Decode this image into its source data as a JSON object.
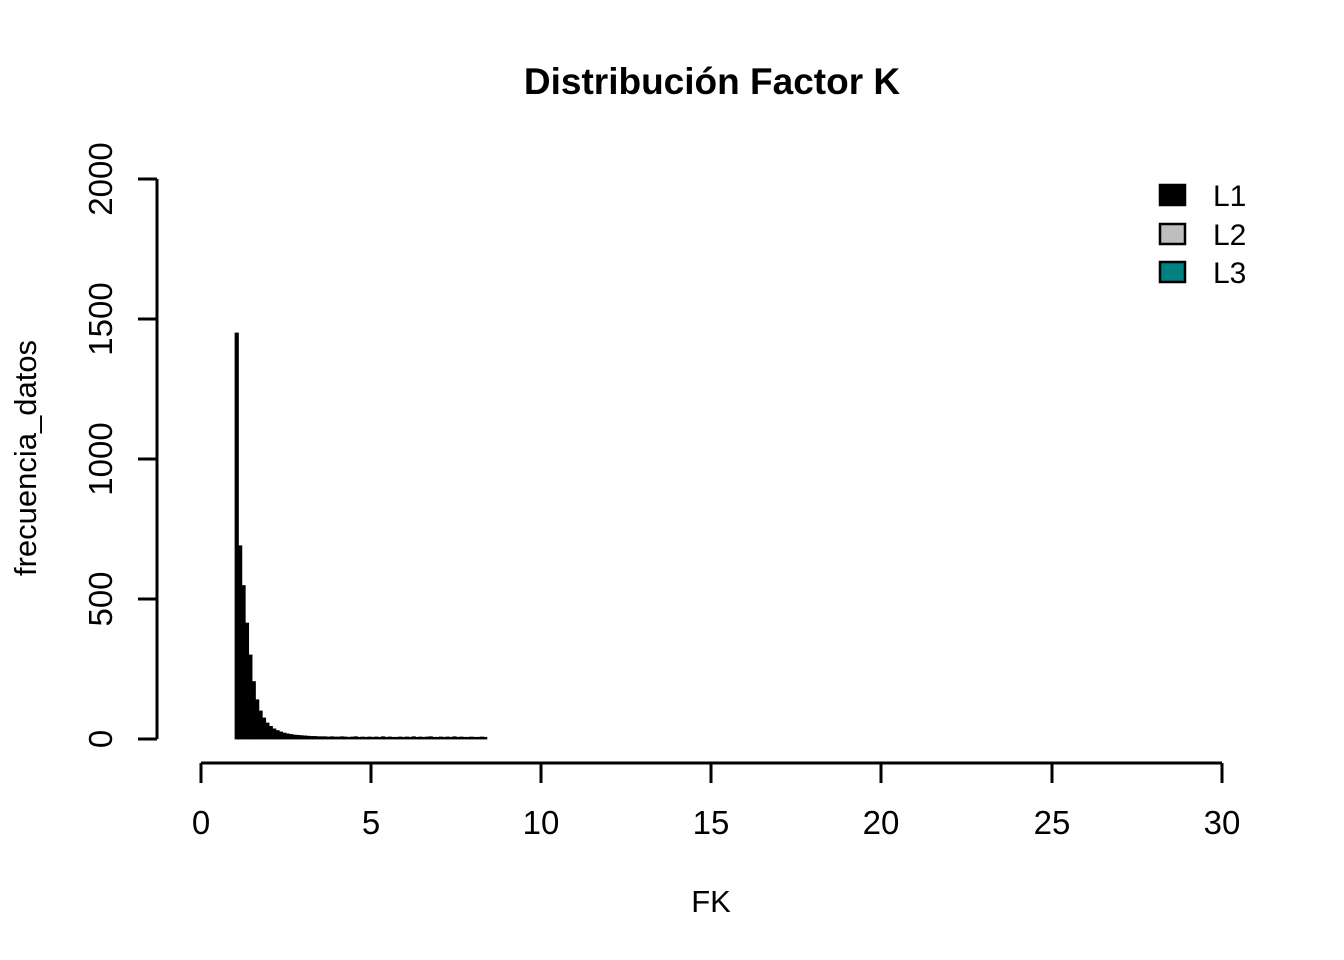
{
  "chart_data": {
    "type": "bar",
    "subtype": "histogram",
    "title": "Distribución Factor K",
    "xlabel": "FK",
    "ylabel": "frecuencia_datos",
    "xlim": [
      0,
      30
    ],
    "ylim": [
      0,
      2000
    ],
    "grid": false,
    "x_tick_labels": [
      "0",
      "5",
      "10",
      "15",
      "20",
      "25",
      "30"
    ],
    "x_tick_values": [
      0,
      5,
      10,
      15,
      20,
      25,
      30
    ],
    "y_tick_labels": [
      "0",
      "500",
      "1000",
      "1500",
      "2000"
    ],
    "y_tick_values": [
      0,
      500,
      1000,
      1500,
      2000
    ],
    "legend_position": "top-right",
    "legend": [
      {
        "label": "L1",
        "color": "#000000"
      },
      {
        "label": "L2",
        "color": "#BEBEBE"
      },
      {
        "label": "L3",
        "color": "#008080"
      }
    ],
    "series_name": "L1",
    "series_color": "#000000",
    "bin_start": 1.0,
    "bin_width": 0.1,
    "counts": [
      1450,
      690,
      548,
      414,
      300,
      205,
      140,
      100,
      75,
      57,
      45,
      36,
      30,
      25,
      21,
      18,
      16,
      14,
      13,
      12,
      11,
      10,
      9,
      9,
      8,
      8,
      8,
      7,
      8,
      7,
      7,
      8,
      7,
      6,
      7,
      8,
      6,
      7,
      6,
      7,
      6,
      7,
      6,
      8,
      6,
      7,
      6,
      6,
      7,
      6,
      7,
      6,
      8,
      6,
      7,
      6,
      7,
      8,
      6,
      6,
      7,
      6,
      7,
      6,
      8,
      6,
      7,
      6,
      6,
      7,
      6,
      6,
      7,
      6
    ]
  }
}
